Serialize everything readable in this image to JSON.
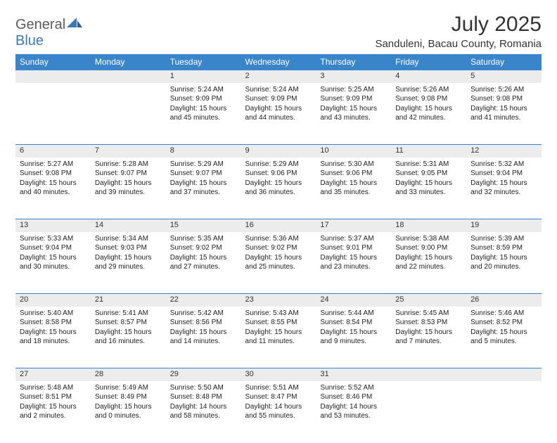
{
  "logo": {
    "general": "General",
    "blue": "Blue"
  },
  "title": "July 2025",
  "location": "Sanduleni, Bacau County, Romania",
  "colors": {
    "header_bg": "#3a85c9",
    "header_text": "#ffffff",
    "daynum_bg": "#ececec",
    "border_top": "#3a85c9",
    "logo_gray": "#5a5a5a",
    "logo_blue": "#3a7ab8"
  },
  "day_headers": [
    "Sunday",
    "Monday",
    "Tuesday",
    "Wednesday",
    "Thursday",
    "Friday",
    "Saturday"
  ],
  "weeks": [
    [
      null,
      null,
      {
        "n": "1",
        "sr": "5:24 AM",
        "ss": "9:09 PM",
        "dl": "15 hours and 45 minutes."
      },
      {
        "n": "2",
        "sr": "5:24 AM",
        "ss": "9:09 PM",
        "dl": "15 hours and 44 minutes."
      },
      {
        "n": "3",
        "sr": "5:25 AM",
        "ss": "9:09 PM",
        "dl": "15 hours and 43 minutes."
      },
      {
        "n": "4",
        "sr": "5:26 AM",
        "ss": "9:08 PM",
        "dl": "15 hours and 42 minutes."
      },
      {
        "n": "5",
        "sr": "5:26 AM",
        "ss": "9:08 PM",
        "dl": "15 hours and 41 minutes."
      }
    ],
    [
      {
        "n": "6",
        "sr": "5:27 AM",
        "ss": "9:08 PM",
        "dl": "15 hours and 40 minutes."
      },
      {
        "n": "7",
        "sr": "5:28 AM",
        "ss": "9:07 PM",
        "dl": "15 hours and 39 minutes."
      },
      {
        "n": "8",
        "sr": "5:29 AM",
        "ss": "9:07 PM",
        "dl": "15 hours and 37 minutes."
      },
      {
        "n": "9",
        "sr": "5:29 AM",
        "ss": "9:06 PM",
        "dl": "15 hours and 36 minutes."
      },
      {
        "n": "10",
        "sr": "5:30 AM",
        "ss": "9:06 PM",
        "dl": "15 hours and 35 minutes."
      },
      {
        "n": "11",
        "sr": "5:31 AM",
        "ss": "9:05 PM",
        "dl": "15 hours and 33 minutes."
      },
      {
        "n": "12",
        "sr": "5:32 AM",
        "ss": "9:04 PM",
        "dl": "15 hours and 32 minutes."
      }
    ],
    [
      {
        "n": "13",
        "sr": "5:33 AM",
        "ss": "9:04 PM",
        "dl": "15 hours and 30 minutes."
      },
      {
        "n": "14",
        "sr": "5:34 AM",
        "ss": "9:03 PM",
        "dl": "15 hours and 29 minutes."
      },
      {
        "n": "15",
        "sr": "5:35 AM",
        "ss": "9:02 PM",
        "dl": "15 hours and 27 minutes."
      },
      {
        "n": "16",
        "sr": "5:36 AM",
        "ss": "9:02 PM",
        "dl": "15 hours and 25 minutes."
      },
      {
        "n": "17",
        "sr": "5:37 AM",
        "ss": "9:01 PM",
        "dl": "15 hours and 23 minutes."
      },
      {
        "n": "18",
        "sr": "5:38 AM",
        "ss": "9:00 PM",
        "dl": "15 hours and 22 minutes."
      },
      {
        "n": "19",
        "sr": "5:39 AM",
        "ss": "8:59 PM",
        "dl": "15 hours and 20 minutes."
      }
    ],
    [
      {
        "n": "20",
        "sr": "5:40 AM",
        "ss": "8:58 PM",
        "dl": "15 hours and 18 minutes."
      },
      {
        "n": "21",
        "sr": "5:41 AM",
        "ss": "8:57 PM",
        "dl": "15 hours and 16 minutes."
      },
      {
        "n": "22",
        "sr": "5:42 AM",
        "ss": "8:56 PM",
        "dl": "15 hours and 14 minutes."
      },
      {
        "n": "23",
        "sr": "5:43 AM",
        "ss": "8:55 PM",
        "dl": "15 hours and 11 minutes."
      },
      {
        "n": "24",
        "sr": "5:44 AM",
        "ss": "8:54 PM",
        "dl": "15 hours and 9 minutes."
      },
      {
        "n": "25",
        "sr": "5:45 AM",
        "ss": "8:53 PM",
        "dl": "15 hours and 7 minutes."
      },
      {
        "n": "26",
        "sr": "5:46 AM",
        "ss": "8:52 PM",
        "dl": "15 hours and 5 minutes."
      }
    ],
    [
      {
        "n": "27",
        "sr": "5:48 AM",
        "ss": "8:51 PM",
        "dl": "15 hours and 2 minutes."
      },
      {
        "n": "28",
        "sr": "5:49 AM",
        "ss": "8:49 PM",
        "dl": "15 hours and 0 minutes."
      },
      {
        "n": "29",
        "sr": "5:50 AM",
        "ss": "8:48 PM",
        "dl": "14 hours and 58 minutes."
      },
      {
        "n": "30",
        "sr": "5:51 AM",
        "ss": "8:47 PM",
        "dl": "14 hours and 55 minutes."
      },
      {
        "n": "31",
        "sr": "5:52 AM",
        "ss": "8:46 PM",
        "dl": "14 hours and 53 minutes."
      },
      null,
      null
    ]
  ],
  "labels": {
    "sunrise": "Sunrise:",
    "sunset": "Sunset:",
    "daylight": "Daylight:"
  }
}
